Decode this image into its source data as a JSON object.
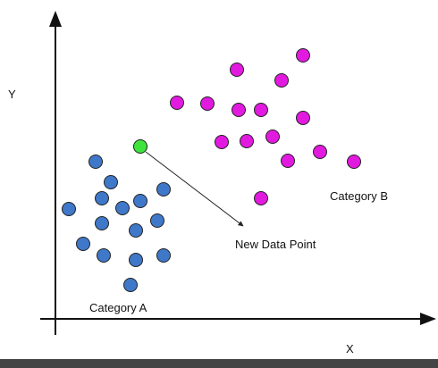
{
  "axes": {
    "x_label": "X",
    "y_label": "Y"
  },
  "labels": {
    "category_a": "Category A",
    "category_b": "Category B",
    "new_point": "New Data Point"
  },
  "colors": {
    "category_a": "#3f78c9",
    "category_b": "#e21adf",
    "new_point": "#3ce43c",
    "stroke": "#222222"
  }
}
